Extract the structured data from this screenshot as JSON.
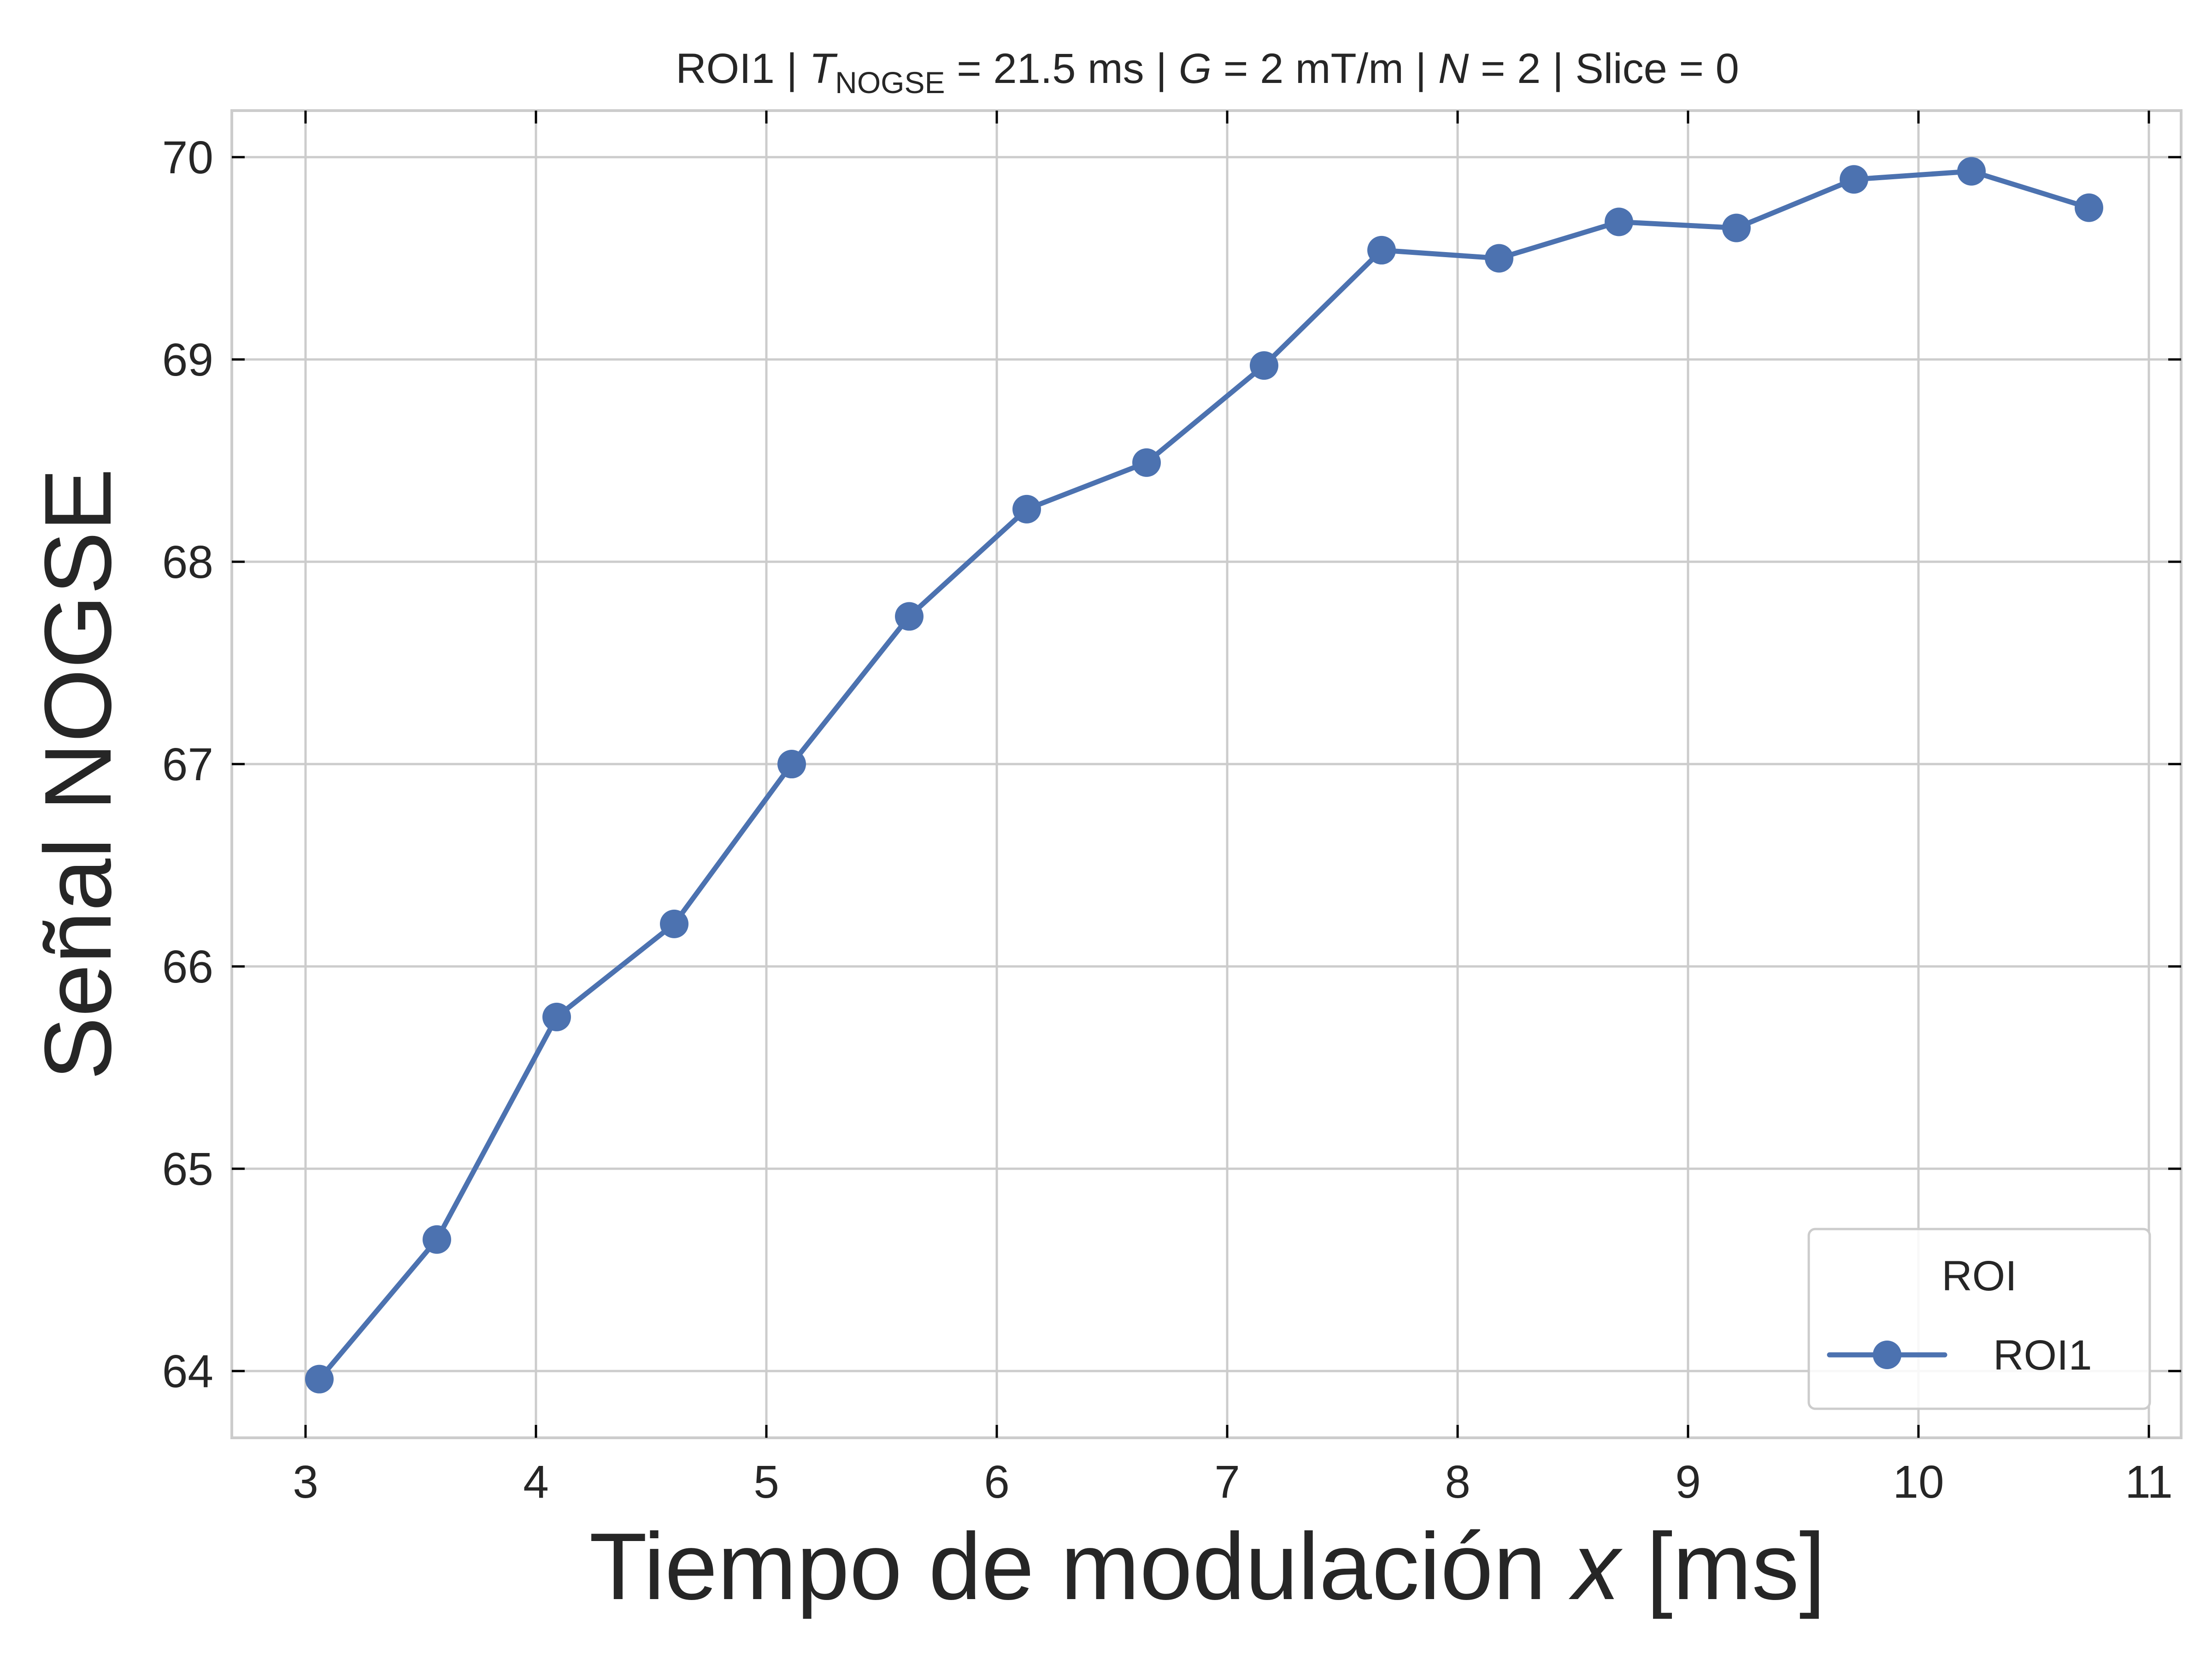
{
  "chart_data": {
    "type": "line",
    "title": {
      "prefix": "ROI1 | ",
      "t_symbol": "T",
      "t_subscript": "NOGSE",
      "t_value": " = 21.5 ms | ",
      "g_symbol": "G",
      "g_value": " = 2 mT/m | ",
      "n_symbol": "N",
      "n_value": " = 2 | Slice = 0"
    },
    "xlabel": {
      "text": "Tiempo de modulación ",
      "var": "x",
      "unit": " [ms]"
    },
    "ylabel": "Señal NOGSE",
    "xlim": [
      2.68,
      11.14
    ],
    "ylim": [
      63.67,
      70.23
    ],
    "xticks": [
      3,
      4,
      5,
      6,
      7,
      8,
      9,
      10,
      11
    ],
    "yticks": [
      64,
      65,
      66,
      67,
      68,
      69,
      70
    ],
    "grid": true,
    "legend": {
      "title": "ROI",
      "placement": "lower-right"
    },
    "series": [
      {
        "name": "ROI1",
        "color": "#4c72b0",
        "marker": "circle",
        "x": [
          3.06,
          3.57,
          4.09,
          4.6,
          5.11,
          5.62,
          6.13,
          6.65,
          7.16,
          7.67,
          8.18,
          8.7,
          9.21,
          9.72,
          10.23,
          10.74
        ],
        "y": [
          63.96,
          64.65,
          65.75,
          66.21,
          67.0,
          67.73,
          68.26,
          68.49,
          68.97,
          69.54,
          69.5,
          69.68,
          69.65,
          69.89,
          69.93,
          69.75
        ]
      }
    ]
  }
}
